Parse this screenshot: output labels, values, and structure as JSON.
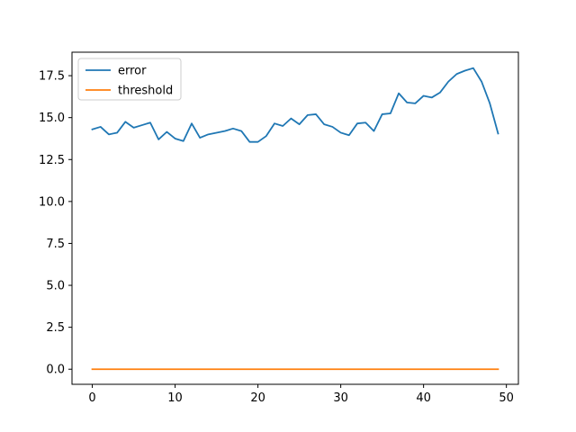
{
  "chart_data": {
    "type": "line",
    "title": "",
    "xlabel": "",
    "ylabel": "",
    "xlim": [
      -2.45,
      51.45
    ],
    "ylim": [
      -0.9,
      18.9
    ],
    "xticks": [
      0,
      10,
      20,
      30,
      40,
      50
    ],
    "yticks": [
      0.0,
      2.5,
      5.0,
      7.5,
      10.0,
      12.5,
      15.0,
      17.5
    ],
    "xtick_labels": [
      "0",
      "10",
      "20",
      "30",
      "40",
      "50"
    ],
    "ytick_labels": [
      "0.0",
      "2.5",
      "5.0",
      "7.5",
      "10.0",
      "12.5",
      "15.0",
      "17.5"
    ],
    "grid": false,
    "legend_position": "top-left",
    "series": [
      {
        "name": "error",
        "color": "#1f77b4",
        "x": [
          0,
          1,
          2,
          3,
          4,
          5,
          6,
          7,
          8,
          9,
          10,
          11,
          12,
          13,
          14,
          15,
          16,
          17,
          18,
          19,
          20,
          21,
          22,
          23,
          24,
          25,
          26,
          27,
          28,
          29,
          30,
          31,
          32,
          33,
          34,
          35,
          36,
          37,
          38,
          39,
          40,
          41,
          42,
          43,
          44,
          45,
          46,
          47,
          48,
          49
        ],
        "values": [
          14.3,
          14.45,
          14.0,
          14.1,
          14.75,
          14.4,
          14.55,
          14.7,
          13.7,
          14.15,
          13.75,
          13.6,
          14.65,
          13.8,
          14.0,
          14.1,
          14.2,
          14.35,
          14.2,
          13.55,
          13.55,
          13.9,
          14.65,
          14.5,
          14.95,
          14.6,
          15.15,
          15.2,
          14.6,
          14.45,
          14.1,
          13.95,
          14.65,
          14.7,
          14.2,
          15.2,
          15.25,
          16.45,
          15.9,
          15.85,
          16.3,
          16.2,
          16.5,
          17.15,
          17.6,
          17.8,
          17.95,
          17.15,
          15.85,
          14.05
        ]
      },
      {
        "name": "threshold",
        "color": "#ff7f0e",
        "x": [
          0,
          1,
          2,
          3,
          4,
          5,
          6,
          7,
          8,
          9,
          10,
          11,
          12,
          13,
          14,
          15,
          16,
          17,
          18,
          19,
          20,
          21,
          22,
          23,
          24,
          25,
          26,
          27,
          28,
          29,
          30,
          31,
          32,
          33,
          34,
          35,
          36,
          37,
          38,
          39,
          40,
          41,
          42,
          43,
          44,
          45,
          46,
          47,
          48,
          49
        ],
        "values": [
          0,
          0,
          0,
          0,
          0,
          0,
          0,
          0,
          0,
          0,
          0,
          0,
          0,
          0,
          0,
          0,
          0,
          0,
          0,
          0,
          0,
          0,
          0,
          0,
          0,
          0,
          0,
          0,
          0,
          0,
          0,
          0,
          0,
          0,
          0,
          0,
          0,
          0,
          0,
          0,
          0,
          0,
          0,
          0,
          0,
          0,
          0,
          0,
          0,
          0
        ]
      }
    ]
  }
}
